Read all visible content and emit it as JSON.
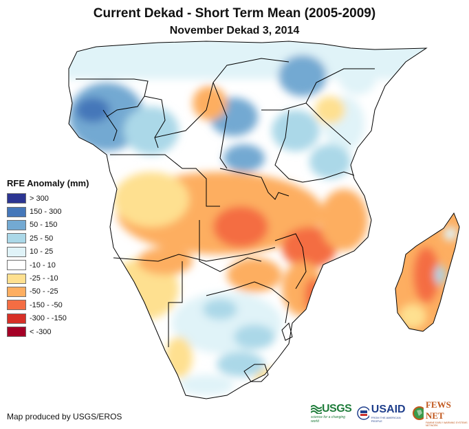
{
  "title": "Current Dekad - Short Term Mean (2005-2009)",
  "subtitle": "November Dekad 3, 2014",
  "legend": {
    "title": "RFE Anomaly (mm)",
    "items": [
      {
        "label": "> 300",
        "color": "#2c3592"
      },
      {
        "label": "150 - 300",
        "color": "#4577b9"
      },
      {
        "label": "50 - 150",
        "color": "#73a9d2"
      },
      {
        "label": "25 - 50",
        "color": "#abd8e8"
      },
      {
        "label": "10 - 25",
        "color": "#e0f3f8"
      },
      {
        "label": "-10 - 10",
        "color": "#ffffff"
      },
      {
        "label": "-25 - -10",
        "color": "#fee090"
      },
      {
        "label": "-50 - -25",
        "color": "#fdae61"
      },
      {
        "label": "-150 - -50",
        "color": "#f46d43"
      },
      {
        "label": "-300 - -150",
        "color": "#d73027"
      },
      {
        "label": "< -300",
        "color": "#a50026"
      }
    ]
  },
  "credit": "Map produced by USGS/EROS",
  "logos": {
    "usgs": {
      "name": "USGS",
      "tagline": "science for a changing world"
    },
    "usaid": {
      "name": "USAID",
      "tagline": "FROM THE AMERICAN PEOPLE"
    },
    "fews": {
      "name": "FEWS NET",
      "tagline": "FAMINE EARLY WARNING SYSTEMS NETWORK"
    }
  },
  "map_regions": {
    "region": "Southern and Central Africa",
    "dominant_patterns": [
      {
        "area": "Gabon / Congo / W. Central Africa",
        "class": "50 - 150"
      },
      {
        "area": "Angola / Zambia / Malawi / Mozambique / Zimbabwe",
        "class": "-50 - -25"
      },
      {
        "area": "Madagascar",
        "class": "-50 - -25"
      },
      {
        "area": "South Africa / Botswana interior",
        "class": "10 - 25"
      },
      {
        "area": "Uganda / Tanzania north",
        "class": "50 - 150"
      },
      {
        "area": "Kenya / Somalia",
        "class": "10 - 25"
      }
    ]
  }
}
